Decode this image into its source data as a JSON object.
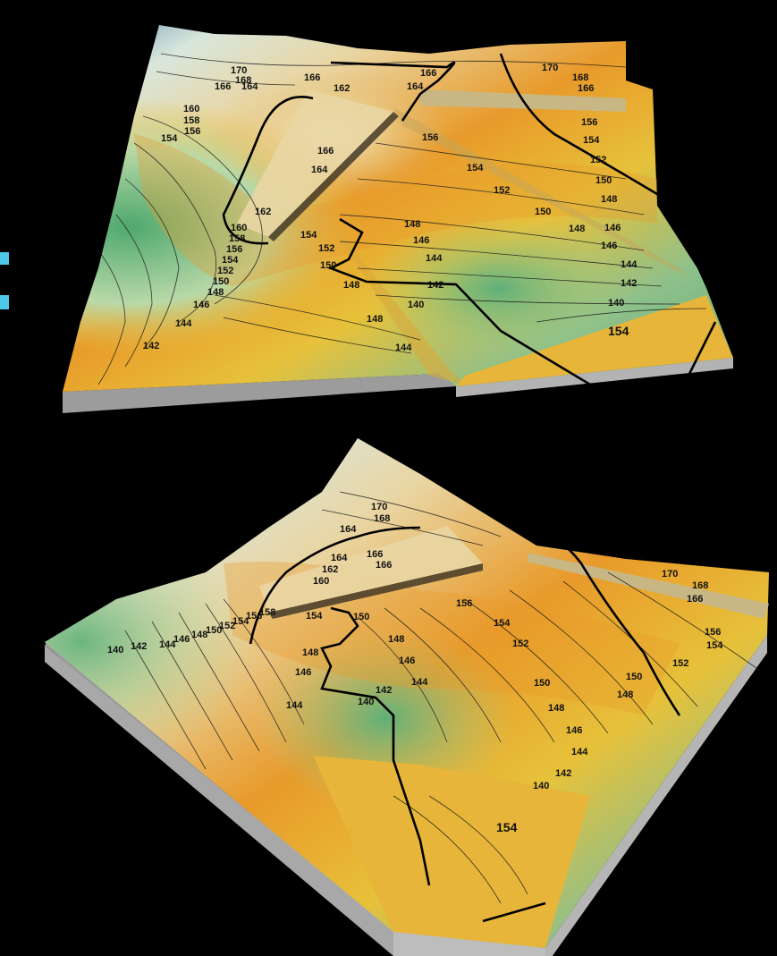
{
  "image": {
    "background_color": "#000000",
    "panels": [
      {
        "name": "top-terrain-view",
        "contour_labels": [
          "170",
          "168",
          "166",
          "164",
          "162",
          "160",
          "158",
          "156",
          "154",
          "152",
          "150",
          "148",
          "146",
          "144",
          "142",
          "140",
          "154",
          "156",
          "152",
          "150",
          "148",
          "146",
          "144",
          "142",
          "166",
          "164",
          "168",
          "166",
          "170",
          "156",
          "154",
          "152",
          "150",
          "148",
          "146",
          "144",
          "142",
          "140",
          "154",
          "148",
          "146",
          "144",
          "154",
          "152",
          "150",
          "148",
          "146",
          "144",
          "142"
        ]
      },
      {
        "name": "bottom-terrain-view",
        "contour_labels": [
          "170",
          "168",
          "164",
          "166",
          "166",
          "164",
          "162",
          "160",
          "158",
          "156",
          "154",
          "152",
          "150",
          "148",
          "146",
          "144",
          "142",
          "140",
          "154",
          "150",
          "148",
          "146",
          "144",
          "140",
          "142",
          "156",
          "154",
          "152",
          "150",
          "148",
          "146",
          "144",
          "142",
          "140",
          "170",
          "168",
          "166",
          "156",
          "154",
          "152",
          "150",
          "148",
          "146",
          "154"
        ]
      }
    ],
    "colors": {
      "low_green": "#5fb07a",
      "mid_yellow": "#e7c13a",
      "orange": "#e89a2a",
      "high_tan": "#e9d6a4",
      "peak_blue": "#5a8fb4",
      "side_gray": "#9e9e9e",
      "contour": "#1a1a1a"
    }
  }
}
